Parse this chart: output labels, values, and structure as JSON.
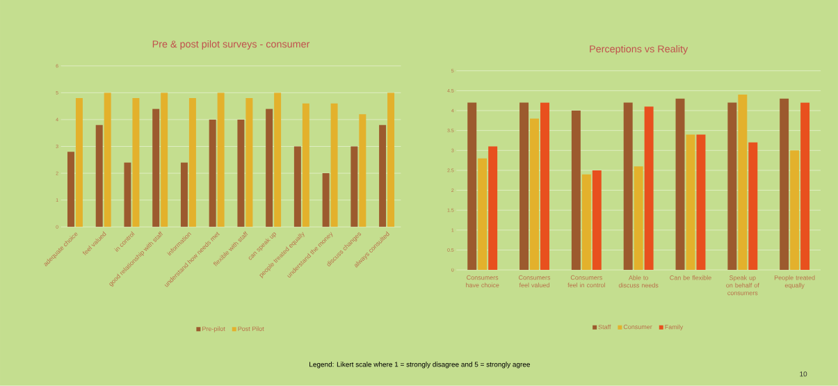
{
  "chart_data": [
    {
      "type": "bar",
      "title": "Pre & post pilot surveys - consumer",
      "categories": [
        "adequate choice",
        "feel valued",
        "in control",
        "good relationship with staff",
        "information",
        "understand how needs met",
        "flexible with staff",
        "can speak up",
        "people treated equally",
        "understand the money",
        "discuss changes",
        "always consulted"
      ],
      "series": [
        {
          "name": "Pre-pilot",
          "color": "#9c5a2e",
          "values": [
            2.8,
            3.8,
            2.4,
            4.4,
            2.4,
            4.0,
            4.0,
            4.4,
            3.0,
            2.0,
            3.0,
            3.8
          ]
        },
        {
          "name": "Post Pilot",
          "color": "#e3b12c",
          "values": [
            4.8,
            5.0,
            4.8,
            5.0,
            4.8,
            5.0,
            4.8,
            5.0,
            4.6,
            4.6,
            4.2,
            5.0
          ]
        }
      ],
      "ylim": [
        0,
        6
      ],
      "yticks": [
        0,
        1,
        2,
        3,
        4,
        5,
        6
      ],
      "grid": "y",
      "legend": "bottom"
    },
    {
      "type": "bar",
      "title": "Perceptions vs Reality",
      "categories": [
        "Consumers have choice",
        "Consumers feel valued",
        "Consumers feel in control",
        "Able to discuss needs",
        "Can be flexible",
        "Speak up on behalf of consumers",
        "People treated equally"
      ],
      "series": [
        {
          "name": "Staff",
          "color": "#9c5a2e",
          "values": [
            4.2,
            4.2,
            4.0,
            4.2,
            4.3,
            4.2,
            4.3
          ]
        },
        {
          "name": "Consumer",
          "color": "#e3b12c",
          "values": [
            2.8,
            3.8,
            2.4,
            2.6,
            3.4,
            4.4,
            3.0
          ]
        },
        {
          "name": "Family",
          "color": "#e8501e",
          "values": [
            3.1,
            4.2,
            2.5,
            4.1,
            3.4,
            3.2,
            4.2
          ]
        }
      ],
      "ylim": [
        0,
        5
      ],
      "yticks": [
        0,
        0.5,
        1,
        1.5,
        2,
        2.5,
        3,
        3.5,
        4,
        4.5,
        5
      ],
      "grid": "y",
      "legend": "bottom",
      "annotations": [
        "Legend: Likert scale where 1 = strongly disagree and 5 = strongly agree",
        "10"
      ]
    }
  ]
}
